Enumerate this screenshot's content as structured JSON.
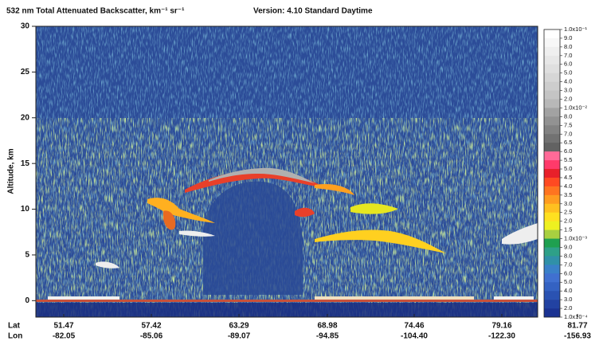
{
  "chart_data": {
    "type": "heatmap",
    "title": "532 nm Total Attenuated Backscatter, km⁻¹ sr⁻¹",
    "subtitle": "Version: 4.10  Standard  Daytime",
    "ylabel": "Altitude, km",
    "ylim": [
      -1.8,
      30
    ],
    "yticks": [
      0,
      5,
      10,
      15,
      20,
      25,
      30
    ],
    "x_row_labels": [
      "Lat",
      "Lon"
    ],
    "lat": [
      "51.47",
      "57.42",
      "63.29",
      "68.98",
      "74.46",
      "79.16",
      "81.77"
    ],
    "lon": [
      "-82.05",
      "-85.06",
      "-89.07",
      "-94.85",
      "-104.40",
      "-122.30",
      "-156.93"
    ],
    "colorbar": {
      "labels": [
        "1.0x10⁻¹",
        "9.0",
        "8.0",
        "7.0",
        "6.0",
        "5.0",
        "4.0",
        "3.0",
        "2.0",
        "1.0x10⁻²",
        "8.0",
        "7.5",
        "7.0",
        "6.5",
        "6.0",
        "5.5",
        "5.0",
        "4.5",
        "4.0",
        "3.5",
        "3.0",
        "2.5",
        "2.0",
        "1.5",
        "1.0x10⁻³",
        "9.0",
        "8.0",
        "7.0",
        "6.0",
        "5.0",
        "4.0",
        "3.0",
        "2.0",
        "1.0x10⁻⁴"
      ],
      "colors": [
        "#ffffff",
        "#f7f7f7",
        "#efefef",
        "#e7e7e7",
        "#dfdfdf",
        "#d6d6d6",
        "#cdcdcd",
        "#c4c4c4",
        "#b8b8b8",
        "#a2a2a2",
        "#929292",
        "#828282",
        "#727272",
        "#626262",
        "#ff6a98",
        "#ff3a6a",
        "#e8202a",
        "#ff4a22",
        "#ff7420",
        "#ff9c20",
        "#ffc020",
        "#ffe020",
        "#eef020",
        "#a8d040",
        "#1fa050",
        "#2ea088",
        "#3090a8",
        "#3a80c8",
        "#4070d0",
        "#3462c2",
        "#2a52b2",
        "#2242a2",
        "#1a3292"
      ]
    }
  }
}
